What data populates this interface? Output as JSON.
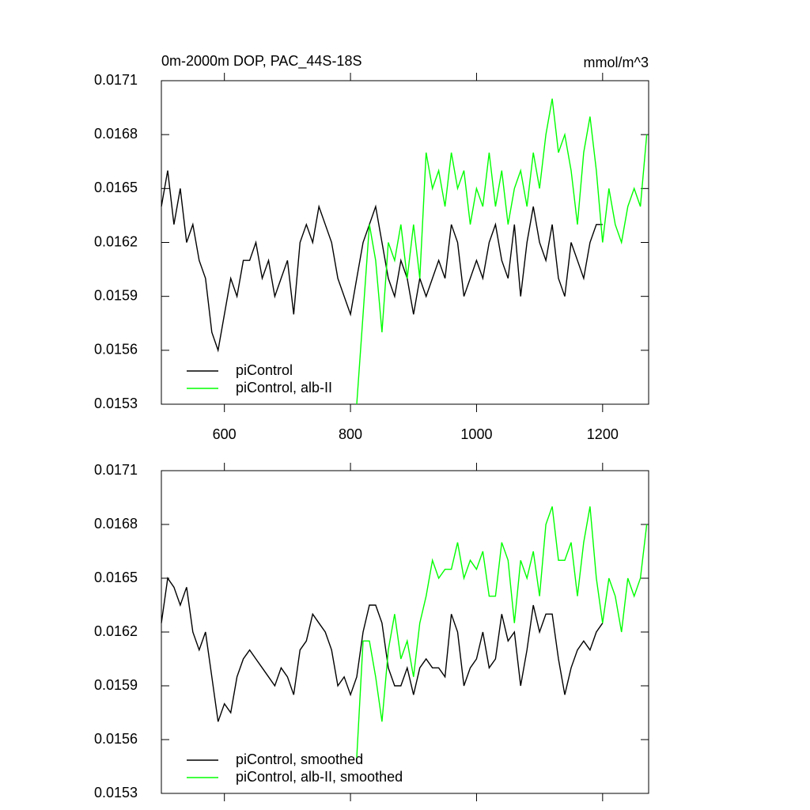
{
  "chart_data": [
    {
      "type": "line",
      "title": "0m-2000m DOP, PAC_44S-18S",
      "units": "mmol/m^3",
      "xlim": [
        500,
        1273
      ],
      "ylim": [
        0.0153,
        0.0171
      ],
      "xticks": [
        600,
        800,
        1000,
        1200
      ],
      "xtick_labels": true,
      "yticks": [
        0.0153,
        0.0156,
        0.0159,
        0.0162,
        0.0165,
        0.0168,
        0.0171
      ],
      "series": [
        {
          "name": "piControl",
          "color": "#000000",
          "x": [
            500,
            510,
            520,
            530,
            540,
            550,
            560,
            570,
            580,
            590,
            600,
            610,
            620,
            630,
            640,
            650,
            660,
            670,
            680,
            690,
            700,
            710,
            720,
            730,
            740,
            750,
            760,
            770,
            780,
            790,
            800,
            810,
            820,
            830,
            840,
            850,
            860,
            870,
            880,
            890,
            900,
            910,
            920,
            930,
            940,
            950,
            960,
            970,
            980,
            990,
            1000,
            1010,
            1020,
            1030,
            1040,
            1050,
            1060,
            1070,
            1080,
            1090,
            1100,
            1110,
            1120,
            1130,
            1140,
            1150,
            1160,
            1170,
            1180,
            1190,
            1200
          ],
          "values": [
            0.0164,
            0.0166,
            0.0163,
            0.0165,
            0.0162,
            0.0163,
            0.0161,
            0.016,
            0.0157,
            0.0156,
            0.0158,
            0.016,
            0.0159,
            0.0161,
            0.0161,
            0.0162,
            0.016,
            0.0161,
            0.0159,
            0.016,
            0.0161,
            0.0158,
            0.0162,
            0.0163,
            0.0162,
            0.0164,
            0.0163,
            0.0162,
            0.016,
            0.0159,
            0.0158,
            0.016,
            0.0162,
            0.0163,
            0.0164,
            0.0162,
            0.016,
            0.0159,
            0.0161,
            0.016,
            0.0158,
            0.016,
            0.0159,
            0.016,
            0.0161,
            0.016,
            0.0163,
            0.0162,
            0.0159,
            0.016,
            0.0161,
            0.016,
            0.0162,
            0.0163,
            0.0161,
            0.016,
            0.0163,
            0.0159,
            0.0162,
            0.0164,
            0.0162,
            0.0161,
            0.0163,
            0.016,
            0.0159,
            0.0162,
            0.0161,
            0.016,
            0.0162,
            0.0163,
            0.0163
          ]
        },
        {
          "name": "piControl, alb-II",
          "color": "#00ff00",
          "x": [
            810,
            820,
            830,
            840,
            850,
            860,
            870,
            880,
            890,
            900,
            910,
            920,
            930,
            940,
            950,
            960,
            970,
            980,
            990,
            1000,
            1010,
            1020,
            1030,
            1040,
            1050,
            1060,
            1070,
            1080,
            1090,
            1100,
            1110,
            1120,
            1130,
            1140,
            1150,
            1160,
            1170,
            1180,
            1190,
            1200,
            1210,
            1220,
            1230,
            1240,
            1250,
            1260,
            1270
          ],
          "values": [
            0.0153,
            0.0158,
            0.0163,
            0.0161,
            0.0157,
            0.0162,
            0.0161,
            0.0163,
            0.016,
            0.0163,
            0.016,
            0.0167,
            0.0165,
            0.0166,
            0.0164,
            0.0167,
            0.0165,
            0.0166,
            0.0163,
            0.0165,
            0.0164,
            0.0167,
            0.0164,
            0.0166,
            0.0163,
            0.0165,
            0.0166,
            0.0164,
            0.0167,
            0.0165,
            0.0168,
            0.017,
            0.0167,
            0.0168,
            0.0166,
            0.0163,
            0.0167,
            0.0169,
            0.0166,
            0.0162,
            0.0165,
            0.0163,
            0.0162,
            0.0164,
            0.0165,
            0.0164,
            0.0168
          ]
        }
      ]
    },
    {
      "type": "line",
      "xlim": [
        500,
        1273
      ],
      "ylim": [
        0.0153,
        0.0171
      ],
      "xticks": [
        600,
        800,
        1000,
        1200
      ],
      "xtick_labels": false,
      "yticks": [
        0.0153,
        0.0156,
        0.0159,
        0.0162,
        0.0165,
        0.0168,
        0.0171
      ],
      "series": [
        {
          "name": "piControl, smoothed",
          "color": "#000000",
          "x": [
            500,
            510,
            520,
            530,
            540,
            550,
            560,
            570,
            580,
            590,
            600,
            610,
            620,
            630,
            640,
            650,
            660,
            670,
            680,
            690,
            700,
            710,
            720,
            730,
            740,
            750,
            760,
            770,
            780,
            790,
            800,
            810,
            820,
            830,
            840,
            850,
            860,
            870,
            880,
            890,
            900,
            910,
            920,
            930,
            940,
            950,
            960,
            970,
            980,
            990,
            1000,
            1010,
            1020,
            1030,
            1040,
            1050,
            1060,
            1070,
            1080,
            1090,
            1100,
            1110,
            1120,
            1130,
            1140,
            1150,
            1160,
            1170,
            1180,
            1190,
            1200
          ],
          "values": [
            0.01625,
            0.0165,
            0.01645,
            0.01635,
            0.01645,
            0.0162,
            0.0161,
            0.0162,
            0.01595,
            0.0157,
            0.0158,
            0.01575,
            0.01595,
            0.01605,
            0.0161,
            0.01605,
            0.016,
            0.01595,
            0.0159,
            0.016,
            0.01595,
            0.01585,
            0.0161,
            0.01615,
            0.0163,
            0.01625,
            0.0162,
            0.0161,
            0.0159,
            0.01595,
            0.01585,
            0.01595,
            0.0162,
            0.01635,
            0.01635,
            0.01625,
            0.016,
            0.0159,
            0.0159,
            0.016,
            0.01585,
            0.016,
            0.01605,
            0.016,
            0.016,
            0.01595,
            0.0163,
            0.0162,
            0.0159,
            0.016,
            0.01605,
            0.0162,
            0.016,
            0.01605,
            0.0163,
            0.01615,
            0.0162,
            0.0159,
            0.0161,
            0.01635,
            0.0162,
            0.0163,
            0.0163,
            0.01605,
            0.01585,
            0.016,
            0.0161,
            0.01615,
            0.0161,
            0.0162,
            0.01625
          ]
        },
        {
          "name": "piControl, alb-II, smoothed",
          "color": "#00ff00",
          "x": [
            810,
            820,
            830,
            840,
            850,
            860,
            870,
            880,
            890,
            900,
            910,
            920,
            930,
            940,
            950,
            960,
            970,
            980,
            990,
            1000,
            1010,
            1020,
            1030,
            1040,
            1050,
            1060,
            1070,
            1080,
            1090,
            1100,
            1110,
            1120,
            1130,
            1140,
            1150,
            1160,
            1170,
            1180,
            1190,
            1200,
            1210,
            1220,
            1230,
            1240,
            1250,
            1260,
            1270
          ],
          "values": [
            0.0155,
            0.01615,
            0.01615,
            0.01595,
            0.0157,
            0.0161,
            0.0163,
            0.01605,
            0.01615,
            0.01595,
            0.01625,
            0.0164,
            0.0166,
            0.0165,
            0.01655,
            0.01655,
            0.0167,
            0.0165,
            0.0166,
            0.01655,
            0.01665,
            0.0164,
            0.0164,
            0.0167,
            0.0166,
            0.01625,
            0.0166,
            0.0165,
            0.01665,
            0.0164,
            0.0168,
            0.0169,
            0.0166,
            0.0166,
            0.0167,
            0.0164,
            0.0167,
            0.0169,
            0.0165,
            0.01625,
            0.0165,
            0.0164,
            0.0162,
            0.0165,
            0.0164,
            0.0165,
            0.0168
          ]
        }
      ]
    }
  ]
}
